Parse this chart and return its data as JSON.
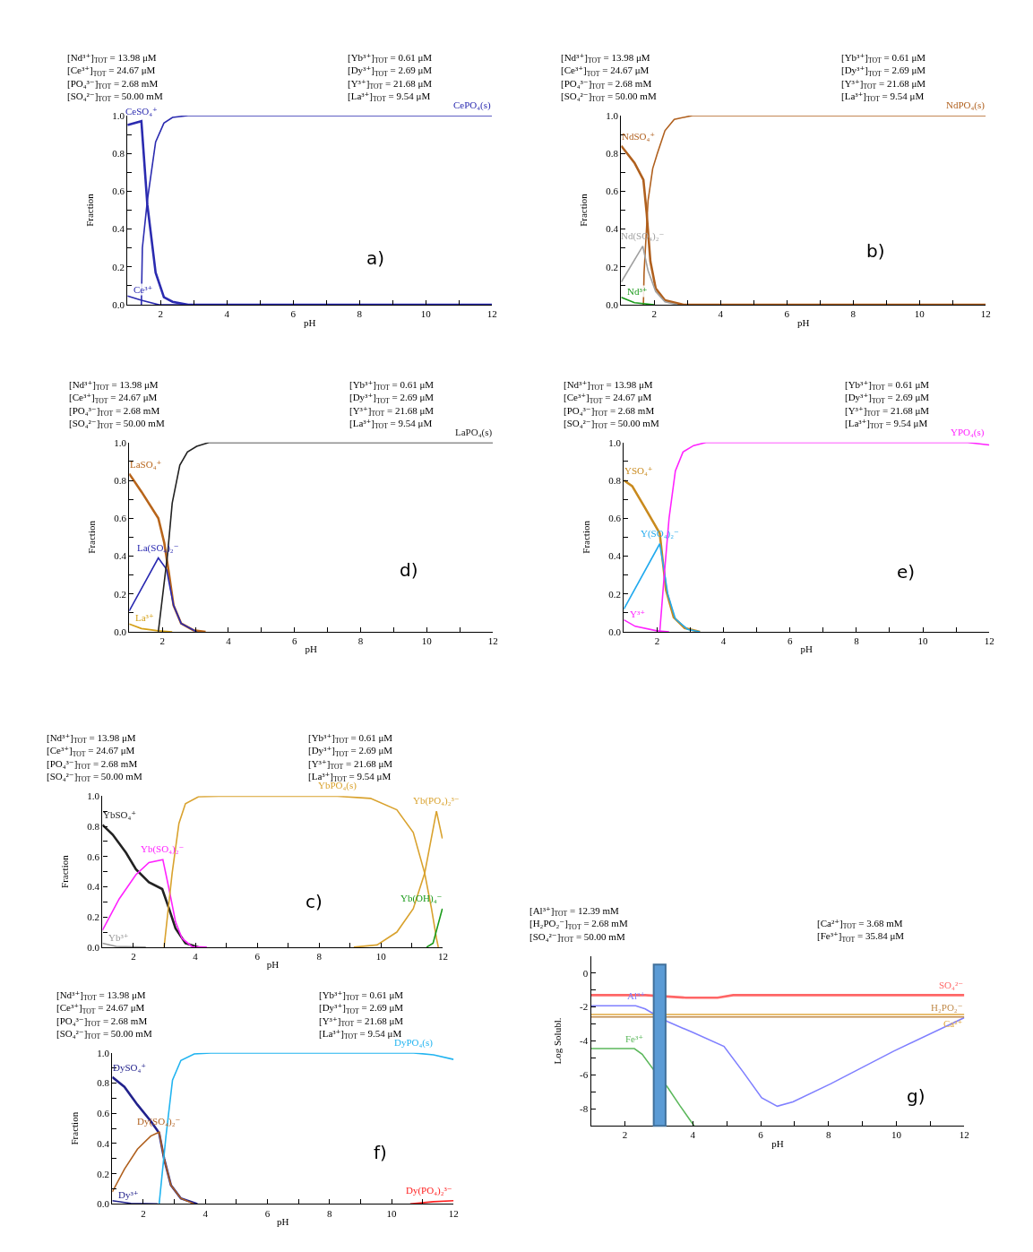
{
  "chart_data": [
    {
      "type": "line",
      "xlabel": "pH",
      "ylabel": "Fraction",
      "xlim": [
        1,
        12
      ],
      "ylim": [
        0,
        1
      ],
      "xticks": [
        2,
        {
          "value": 3,
          "label": null
        },
        4,
        {
          "value": 5,
          "label": null
        },
        6,
        {
          "value": 7,
          "label": null
        },
        8,
        {
          "value": 9,
          "label": null
        },
        10,
        {
          "value": 11,
          "label": null
        },
        12
      ],
      "yticks": [
        {
          "value": 0,
          "label": "0.0"
        },
        {
          "value": 0.1,
          "label": null
        },
        {
          "value": 0.2,
          "label": "0.2"
        },
        {
          "value": 0.3,
          "label": null
        },
        {
          "value": 0.4,
          "label": "0.4"
        },
        {
          "value": 0.5,
          "label": null
        },
        {
          "value": 0.6,
          "label": "0.6"
        },
        {
          "value": 0.7,
          "label": null
        },
        {
          "value": 0.8,
          "label": "0.8"
        },
        {
          "value": 0.9,
          "label": null
        },
        {
          "value": 1,
          "label": "1.0"
        }
      ],
      "grid": false,
      "legend": false,
      "marker": "none",
      "line_style": "solid",
      "annotations": [
        "[Nd³⁺]$_{TOT}$ = 13.98 μM\n[Ce³⁺]$_{TOT}$ = 24.67 μM\n[PO₄³⁻]$_{TOT}$ = 2.68 mM\n[SO₄²⁻]$_{TOT}$ = 50.00 mM",
        "[Yb³⁺]$_{TOT}$ = 0.61 μM\n[Dy³⁺]$_{TOT}$ = 2.69 μM\n[Y³⁺]$_{TOT}$ = 21.68 μM\n[La³⁺]$_{TOT}$ = 9.54 μM",
        "a)"
      ],
      "series": [
        {
          "name": "CeSO₄⁺",
          "color": "#2b2bb0",
          "x": [
            1,
            1.42,
            1.6,
            1.85,
            2.1,
            2.36,
            2.83,
            12
          ],
          "values": [
            0.95,
            0.97,
            0.53,
            0.17,
            0.04,
            0.016,
            0,
            0
          ]
        },
        {
          "name": "CePO₄(s)",
          "color": "#2b2bb0",
          "x": [
            1.42,
            1.45,
            1.6,
            1.85,
            2.1,
            2.36,
            2.83,
            12
          ],
          "values": [
            0,
            0.3,
            0.55,
            0.86,
            0.96,
            0.99,
            1,
            1
          ]
        },
        {
          "name": "Ce³⁺",
          "color": "#2b2bb0",
          "x": [
            1,
            1.42,
            1.95,
            12
          ],
          "values": [
            0.047,
            0.024,
            0,
            0
          ]
        }
      ]
    },
    {
      "type": "line",
      "xlabel": "pH",
      "ylabel": "Fraction",
      "xlim": [
        1,
        12
      ],
      "ylim": [
        0,
        1
      ],
      "xticks": [
        2,
        {
          "value": 3,
          "label": null
        },
        4,
        {
          "value": 5,
          "label": null
        },
        6,
        {
          "value": 7,
          "label": null
        },
        8,
        {
          "value": 9,
          "label": null
        },
        10,
        {
          "value": 11,
          "label": null
        },
        12
      ],
      "yticks": [
        {
          "value": 0,
          "label": "0.0"
        },
        {
          "value": 0.1,
          "label": null
        },
        {
          "value": 0.2,
          "label": "0.2"
        },
        {
          "value": 0.3,
          "label": null
        },
        {
          "value": 0.4,
          "label": "0.4"
        },
        {
          "value": 0.5,
          "label": null
        },
        {
          "value": 0.6,
          "label": "0.6"
        },
        {
          "value": 0.7,
          "label": null
        },
        {
          "value": 0.8,
          "label": "0.8"
        },
        {
          "value": 0.9,
          "label": null
        },
        {
          "value": 1,
          "label": "1.0"
        }
      ],
      "grid": false,
      "legend": false,
      "marker": "none",
      "line_style": "solid",
      "annotations": [
        "[Nd³⁺]$_{TOT}$ = 13.98 μM\n[Ce³⁺]$_{TOT}$ = 24.67 μM\n[PO₄³⁻]$_{TOT}$ = 2.68 mM\n[SO₄²⁻]$_{TOT}$ = 50.00 mM",
        "[Yb³⁺]$_{TOT}$ = 0.61 μM\n[Dy³⁺]$_{TOT}$ = 2.69 μM\n[Y³⁺]$_{TOT}$ = 21.68 μM\n[La³⁺]$_{TOT}$ = 9.54 μM",
        "b)"
      ],
      "series": [
        {
          "name": "NdSO₄⁺",
          "color": "#b0601e",
          "x": [
            1,
            1.4,
            1.67,
            1.77,
            1.88,
            2.04,
            2.32,
            2.88,
            12
          ],
          "values": [
            0.84,
            0.75,
            0.66,
            0.48,
            0.23,
            0.087,
            0.024,
            0,
            0
          ]
        },
        {
          "name": "NdPO₄(s)",
          "color": "#b0601e",
          "x": [
            1.67,
            1.69,
            1.81,
            1.95,
            2.09,
            2.32,
            2.6,
            3.15,
            12
          ],
          "values": [
            0,
            0.17,
            0.55,
            0.72,
            0.8,
            0.92,
            0.98,
            1,
            1
          ]
        },
        {
          "name": "Nd(SO₄)₂⁻",
          "color": "#a0a0a0",
          "x": [
            1,
            1.65,
            1.81,
            2.04,
            2.32,
            2.69
          ],
          "values": [
            0.12,
            0.31,
            0.18,
            0.07,
            0.016,
            0
          ]
        },
        {
          "name": "Nd³⁺",
          "color": "#1a9a1a",
          "x": [
            1,
            1.4,
            2.0
          ],
          "values": [
            0.04,
            0.011,
            0
          ]
        }
      ]
    },
    {
      "type": "line",
      "xlabel": "pH",
      "ylabel": "Fraction",
      "xlim": [
        1,
        12
      ],
      "ylim": [
        0,
        1
      ],
      "xticks": [
        2,
        {
          "value": 3,
          "label": null
        },
        4,
        {
          "value": 5,
          "label": null
        },
        6,
        {
          "value": 7,
          "label": null
        },
        8,
        {
          "value": 9,
          "label": null
        },
        10,
        {
          "value": 11,
          "label": null
        },
        12
      ],
      "yticks": [
        {
          "value": 0,
          "label": "0.0"
        },
        {
          "value": 0.1,
          "label": null
        },
        {
          "value": 0.2,
          "label": "0.2"
        },
        {
          "value": 0.3,
          "label": null
        },
        {
          "value": 0.4,
          "label": "0.4"
        },
        {
          "value": 0.5,
          "label": null
        },
        {
          "value": 0.6,
          "label": "0.6"
        },
        {
          "value": 0.7,
          "label": null
        },
        {
          "value": 0.8,
          "label": "0.8"
        },
        {
          "value": 0.9,
          "label": null
        },
        {
          "value": 1,
          "label": "1.0"
        }
      ],
      "grid": false,
      "legend": false,
      "marker": "none",
      "line_style": "solid",
      "annotations": [
        "[Nd³⁺]$_{TOT}$ = 13.98 μM\n[Ce³⁺]$_{TOT}$ = 24.67 μM\n[PO₄³⁻]$_{TOT}$ = 2.68 mM\n[SO₄²⁻]$_{TOT}$ = 50.00 mM",
        "[Yb³⁺]$_{TOT}$ = 0.61 μM\n[Dy³⁺]$_{TOT}$ = 2.69 μM\n[Y³⁺]$_{TOT}$ = 21.68 μM\n[La³⁺]$_{TOT}$ = 9.54 μM",
        "d)"
      ],
      "series": [
        {
          "name": "LaSO₄⁺",
          "color": "#b8651b",
          "x": [
            1,
            1.37,
            1.88,
            2.06,
            2.2,
            2.34,
            2.57,
            2.94,
            3.31
          ],
          "values": [
            0.835,
            0.74,
            0.6,
            0.47,
            0.31,
            0.14,
            0.044,
            0.008,
            0
          ]
        },
        {
          "name": "La(SO₄)₂⁻",
          "color": "#2828b0",
          "x": [
            1,
            1.88,
            2.13,
            2.25,
            2.34,
            2.57,
            3.04
          ],
          "values": [
            0.11,
            0.39,
            0.33,
            0.22,
            0.14,
            0.044,
            0
          ]
        },
        {
          "name": "La³⁺",
          "color": "#d4a017",
          "x": [
            1,
            1.37,
            1.88,
            2.3
          ],
          "values": [
            0.041,
            0.017,
            0.005,
            0
          ]
        },
        {
          "name": "LaPO₄(s)",
          "color": "#222222",
          "x": [
            1.88,
            2.16,
            2.3,
            2.53,
            2.76,
            3.04,
            3.41,
            12
          ],
          "values": [
            0,
            0.41,
            0.68,
            0.88,
            0.95,
            0.98,
            1,
            1
          ]
        }
      ]
    },
    {
      "type": "line",
      "xlabel": "pH",
      "ylabel": "Fraction",
      "xlim": [
        1,
        12
      ],
      "ylim": [
        0,
        1
      ],
      "xticks": [
        2,
        {
          "value": 3,
          "label": null
        },
        4,
        {
          "value": 5,
          "label": null
        },
        6,
        {
          "value": 7,
          "label": null
        },
        8,
        {
          "value": 9,
          "label": null
        },
        10,
        {
          "value": 11,
          "label": null
        },
        12
      ],
      "yticks": [
        {
          "value": 0,
          "label": "0.0"
        },
        {
          "value": 0.1,
          "label": null
        },
        {
          "value": 0.2,
          "label": "0.2"
        },
        {
          "value": 0.3,
          "label": null
        },
        {
          "value": 0.4,
          "label": "0.4"
        },
        {
          "value": 0.5,
          "label": null
        },
        {
          "value": 0.6,
          "label": "0.6"
        },
        {
          "value": 0.7,
          "label": null
        },
        {
          "value": 0.8,
          "label": "0.8"
        },
        {
          "value": 0.9,
          "label": null
        },
        {
          "value": 1,
          "label": "1.0"
        }
      ],
      "grid": false,
      "legend": false,
      "marker": "none",
      "line_style": "solid",
      "annotations": [
        "[Nd³⁺]$_{TOT}$ = 13.98 μM\n[Ce³⁺]$_{TOT}$ = 24.67 μM\n[PO₄³⁻]$_{TOT}$ = 2.68 mM\n[SO₄²⁻]$_{TOT}$ = 50.00 mM",
        "[Yb³⁺]$_{TOT}$ = 0.61 μM\n[Dy³⁺]$_{TOT}$ = 2.69 μM\n[Y³⁺]$_{TOT}$ = 21.68 μM\n[La³⁺]$_{TOT}$ = 9.54 μM",
        "e)"
      ],
      "series": [
        {
          "name": "YSO₄⁺",
          "color": "#c98a1e",
          "x": [
            1,
            1.25,
            1.62,
            2.08,
            2.16,
            2.27,
            2.5,
            2.83,
            3.29
          ],
          "values": [
            0.8,
            0.77,
            0.66,
            0.52,
            0.39,
            0.22,
            0.076,
            0.02,
            0
          ]
        },
        {
          "name": "Y(SO₄)₂⁻",
          "color": "#22aaee",
          "x": [
            1,
            2.08,
            2.19,
            2.32,
            2.55,
            2.92,
            3.29
          ],
          "values": [
            0.12,
            0.465,
            0.35,
            0.2,
            0.068,
            0.013,
            0
          ]
        },
        {
          "name": "Y³⁺",
          "color": "#ff22ff",
          "x": [
            1,
            1.34,
            1.99,
            2.36
          ],
          "values": [
            0.063,
            0.029,
            0.005,
            0
          ]
        },
        {
          "name": "YPO₄(s)",
          "color": "#ff22ff",
          "x": [
            2.08,
            2.22,
            2.36,
            2.55,
            2.78,
            3.1,
            3.47,
            11.35,
            12
          ],
          "values": [
            0,
            0.31,
            0.6,
            0.85,
            0.95,
            0.984,
            1,
            1,
            0.987
          ]
        }
      ]
    },
    {
      "type": "line",
      "xlabel": "pH",
      "ylabel": "Fraction",
      "xlim": [
        1,
        12
      ],
      "ylim": [
        0,
        1
      ],
      "xticks": [
        2,
        {
          "value": 3,
          "label": null
        },
        4,
        {
          "value": 5,
          "label": null
        },
        6,
        {
          "value": 7,
          "label": null
        },
        8,
        {
          "value": 9,
          "label": null
        },
        10,
        {
          "value": 11,
          "label": null
        },
        12
      ],
      "yticks": [
        {
          "value": 0,
          "label": "0.0"
        },
        {
          "value": 0.1,
          "label": null
        },
        {
          "value": 0.2,
          "label": "0.2"
        },
        {
          "value": 0.3,
          "label": null
        },
        {
          "value": 0.4,
          "label": "0.4"
        },
        {
          "value": 0.5,
          "label": null
        },
        {
          "value": 0.6,
          "label": "0.6"
        },
        {
          "value": 0.7,
          "label": null
        },
        {
          "value": 0.8,
          "label": "0.8"
        },
        {
          "value": 0.9,
          "label": null
        },
        {
          "value": 1,
          "label": "1.0"
        }
      ],
      "grid": false,
      "legend": false,
      "marker": "none",
      "line_style": "solid",
      "annotations": [
        "[Nd³⁺]$_{TOT}$ = 13.98 μM\n[Ce³⁺]$_{TOT}$ = 24.67 μM\n[PO₄³⁻]$_{TOT}$ = 2.68 mM\n[SO₄²⁻]$_{TOT}$ = 50.00 mM",
        "[Yb³⁺]$_{TOT}$ = 0.61 μM\n[Dy³⁺]$_{TOT}$ = 2.69 μM\n[Y³⁺]$_{TOT}$ = 21.68 μM\n[La³⁺]$_{TOT}$ = 9.54 μM",
        "c)"
      ],
      "series": [
        {
          "name": "YbSO₄⁺",
          "color": "#222222",
          "x": [
            1,
            1.33,
            1.76,
            2.08,
            2.5,
            2.93,
            3.15,
            3.36,
            3.68,
            4.1
          ],
          "values": [
            0.81,
            0.745,
            0.625,
            0.516,
            0.43,
            0.385,
            0.255,
            0.124,
            0.026,
            0
          ]
        },
        {
          "name": "Yb(SO₄)₂⁻",
          "color": "#ff22ff",
          "x": [
            1,
            1.54,
            2.08,
            2.5,
            2.95,
            3.15,
            3.36,
            3.57,
            3.89,
            4.37
          ],
          "values": [
            0.113,
            0.32,
            0.48,
            0.56,
            0.58,
            0.385,
            0.168,
            0.059,
            0.004,
            0
          ]
        },
        {
          "name": "Yb³⁺",
          "color": "#999999",
          "x": [
            1,
            1.44,
            2.4
          ],
          "values": [
            0.026,
            0.005,
            0
          ]
        },
        {
          "name": "YbPO₄(s)",
          "color": "#d9a22e",
          "x": [
            2.99,
            3.25,
            3.47,
            3.68,
            4.1,
            4.75,
            8.59,
            9.66,
            10.51,
            11.04,
            11.41,
            11.63,
            11.79,
            11.85
          ],
          "values": [
            0,
            0.49,
            0.82,
            0.95,
            0.996,
            1,
            1,
            0.985,
            0.91,
            0.76,
            0.49,
            0.255,
            0.059,
            0
          ]
        },
        {
          "name": "Yb(PO₄)₂³⁻",
          "color": "#d9a22e",
          "x": [
            9.12,
            9.87,
            10.51,
            11.04,
            11.41,
            11.79,
            11.98
          ],
          "values": [
            0,
            0.015,
            0.1,
            0.255,
            0.49,
            0.9,
            0.72
          ]
        },
        {
          "name": "Yb(OH)₄⁻",
          "color": "#1a9a1a",
          "x": [
            11.47,
            11.68,
            11.98
          ],
          "values": [
            0,
            0.026,
            0.255
          ]
        }
      ]
    },
    {
      "type": "line",
      "xlabel": "pH",
      "ylabel": "Log Solubl.",
      "xlim": [
        1,
        12
      ],
      "ylim": [
        -9,
        1
      ],
      "xticks": [
        2,
        {
          "value": 3,
          "label": null
        },
        4,
        {
          "value": 5,
          "label": null
        },
        6,
        {
          "value": 7,
          "label": null
        },
        8,
        {
          "value": 9,
          "label": null
        },
        10,
        {
          "value": 11,
          "label": null
        },
        12
      ],
      "yticks": [
        -8,
        {
          "value": -7,
          "label": null
        },
        -6,
        {
          "value": -5,
          "label": null
        },
        -4,
        {
          "value": -3,
          "label": null
        },
        -2,
        {
          "value": -1,
          "label": null
        },
        0
      ],
      "grid": false,
      "legend": false,
      "marker": "none",
      "line_style": "solid",
      "annotations": [
        "[Al³⁺]$_{TOT}$ = 12.39 mM\n[H₂PO₂⁻]$_{TOT}$ = 2.68 mM\n[SO₄²⁻]$_{TOT}$ = 50.00 mM",
        "[Ca²⁺]$_{TOT}$ = 3.68 mM\n[Fe³⁺]$_{TOT}$ = 35.84 μM",
        "g)"
      ],
      "bands": [
        {
          "axis": "x",
          "from": 2.85,
          "to": 3.2,
          "color": "#5b9bd5"
        }
      ],
      "series": [
        {
          "name": "SO₄²⁻",
          "color": "#ff6666",
          "x": [
            1,
            2.6,
            3.8,
            4.73,
            5.19,
            12
          ],
          "values": [
            -1.3,
            -1.3,
            -1.45,
            -1.45,
            -1.3,
            -1.3
          ]
        },
        {
          "name": "Al³⁺",
          "color": "#8080ff",
          "x": [
            1,
            2.32,
            2.6,
            2.88,
            3.25,
            3.99,
            4.92,
            5.47,
            6.03,
            6.49,
            6.95,
            8.06,
            9.92,
            12
          ],
          "values": [
            -1.93,
            -1.93,
            -2.11,
            -2.44,
            -2.85,
            -3.49,
            -4.32,
            -5.79,
            -7.35,
            -7.85,
            -7.59,
            -6.53,
            -4.6,
            -2.63
          ]
        },
        {
          "name": "H₂PO₂⁻",
          "color": "#c08a4a",
          "x": [
            1,
            12
          ],
          "values": [
            -2.59,
            -2.59
          ]
        },
        {
          "name": "Ca²⁺",
          "color": "#e0a840",
          "x": [
            1,
            12
          ],
          "values": [
            -2.44,
            -2.44
          ]
        },
        {
          "name": "Fe³⁺",
          "color": "#5cb85c",
          "x": [
            1,
            2.28,
            2.51,
            2.88,
            3.25,
            3.62,
            4.04
          ],
          "values": [
            -4.45,
            -4.45,
            -4.78,
            -5.79,
            -6.71,
            -7.81,
            -9
          ]
        }
      ]
    },
    {
      "type": "line",
      "xlabel": "pH",
      "ylabel": "Fraction",
      "xlim": [
        1,
        12
      ],
      "ylim": [
        0,
        1
      ],
      "xticks": [
        2,
        {
          "value": 3,
          "label": null
        },
        4,
        {
          "value": 5,
          "label": null
        },
        6,
        {
          "value": 7,
          "label": null
        },
        8,
        {
          "value": 9,
          "label": null
        },
        10,
        {
          "value": 11,
          "label": null
        },
        12
      ],
      "yticks": [
        {
          "value": 0,
          "label": "0.0"
        },
        {
          "value": 0.1,
          "label": null
        },
        {
          "value": 0.2,
          "label": "0.2"
        },
        {
          "value": 0.3,
          "label": null
        },
        {
          "value": 0.4,
          "label": "0.4"
        },
        {
          "value": 0.5,
          "label": null
        },
        {
          "value": 0.6,
          "label": "0.6"
        },
        {
          "value": 0.7,
          "label": null
        },
        {
          "value": 0.8,
          "label": "0.8"
        },
        {
          "value": 0.9,
          "label": null
        },
        {
          "value": 1,
          "label": "1.0"
        }
      ],
      "grid": false,
      "legend": false,
      "marker": "none",
      "line_style": "solid",
      "annotations": [
        "[Nd³⁺]$_{TOT}$ = 13.98 μM\n[Ce³⁺]$_{TOT}$ = 24.67 μM\n[PO₄³⁻]$_{TOT}$ = 2.68 mM\n[SO₄²⁻]$_{TOT}$ = 50.00 mM",
        "[Yb³⁺]$_{TOT}$ = 0.61 μM\n[Dy³⁺]$_{TOT}$ = 2.69 μM\n[Y³⁺]$_{TOT}$ = 21.68 μM\n[La³⁺]$_{TOT}$ = 9.54 μM",
        "f)"
      ],
      "series": [
        {
          "name": "DySO₄⁺",
          "color": "#22228c",
          "x": [
            1,
            1.39,
            1.81,
            2.24,
            2.51,
            2.67,
            2.89,
            3.21,
            3.74
          ],
          "values": [
            0.84,
            0.776,
            0.657,
            0.548,
            0.47,
            0.3,
            0.124,
            0.037,
            0
          ]
        },
        {
          "name": "Dy(SO₄)₂⁻",
          "color": "#b0601e",
          "x": [
            1,
            1.39,
            1.81,
            2.24,
            2.51,
            2.67,
            2.89,
            3.21,
            3.64
          ],
          "values": [
            0.08,
            0.23,
            0.363,
            0.45,
            0.476,
            0.3,
            0.124,
            0.037,
            0
          ]
        },
        {
          "name": "Dy³⁺",
          "color": "#22228c",
          "x": [
            1,
            1.6,
            2.46
          ],
          "values": [
            0.022,
            0.004,
            0
          ]
        },
        {
          "name": "DyPO₄(s)",
          "color": "#22b4f0",
          "x": [
            2.51,
            2.73,
            2.94,
            3.21,
            3.64,
            4.17,
            10.71,
            11.35,
            12
          ],
          "values": [
            0,
            0.45,
            0.82,
            0.95,
            0.993,
            1,
            1,
            0.987,
            0.957
          ]
        },
        {
          "name": "Dy(PO₄)₂³⁻",
          "color": "#ff2020",
          "x": [
            10.6,
            11.35,
            12
          ],
          "values": [
            0,
            0.015,
            0.022
          ]
        }
      ]
    }
  ]
}
